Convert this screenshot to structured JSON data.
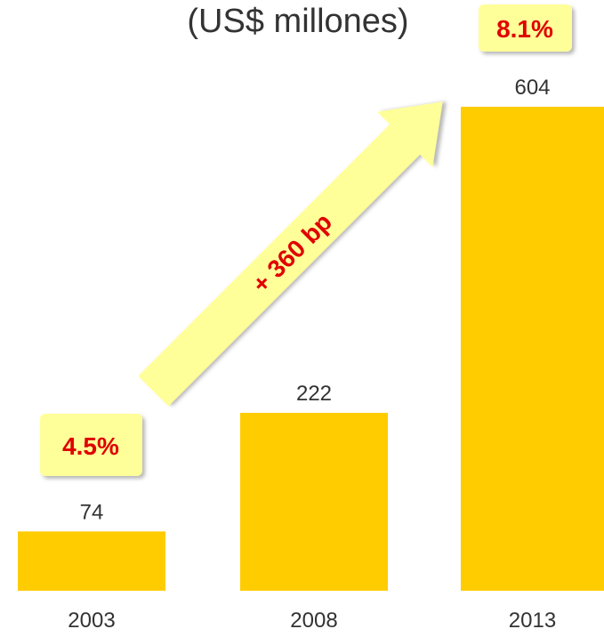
{
  "chart_data": {
    "type": "bar",
    "title": "(US$ millones)",
    "categories": [
      "2003",
      "2008",
      "2013"
    ],
    "values": [
      74,
      222,
      604
    ],
    "color": "#ffcc00",
    "annotations": [
      "4.5%",
      "8.1%",
      "+ 360 bp"
    ]
  }
}
